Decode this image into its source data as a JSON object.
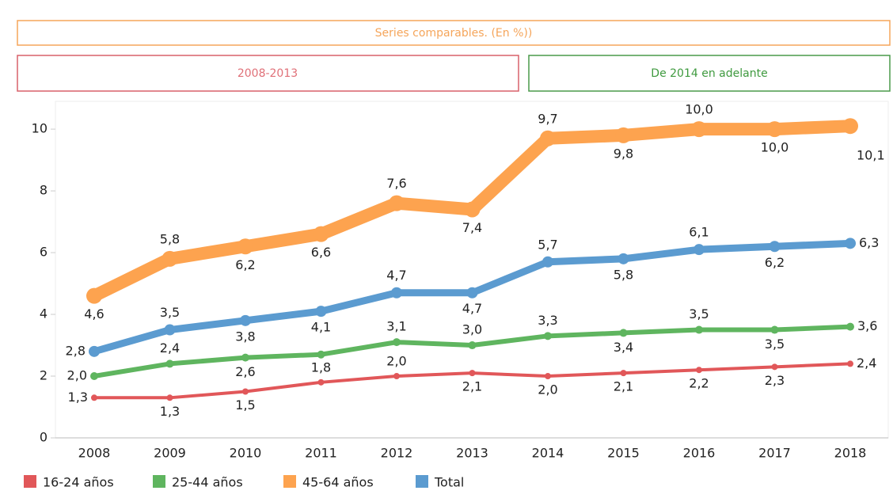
{
  "headers": {
    "title": "Series comparables. (En %))",
    "left": "2008-2013",
    "right": "De 2014 en adelante"
  },
  "chart_data": {
    "type": "line",
    "categories": [
      "2008",
      "2009",
      "2010",
      "2011",
      "2012",
      "2013",
      "2014",
      "2015",
      "2016",
      "2017",
      "2018"
    ],
    "ylim": [
      0,
      10.9
    ],
    "yticks": [
      0,
      2,
      4,
      6,
      8,
      10
    ],
    "series": [
      {
        "name": "16-24 años",
        "color": "#e15759",
        "values": [
          1.3,
          1.3,
          1.5,
          1.8,
          2.0,
          2.1,
          2.0,
          2.1,
          2.2,
          2.3,
          2.4
        ],
        "value_labels": [
          "1,3",
          "1,3",
          "1,5",
          "1,8",
          "2,0",
          "2,1",
          "2,0",
          "2,1",
          "2,2",
          "2,3",
          "2,4"
        ]
      },
      {
        "name": "25-44 años",
        "color": "#5fb55f",
        "values": [
          2.0,
          2.4,
          2.6,
          2.7,
          3.1,
          3.0,
          3.3,
          3.4,
          3.5,
          3.5,
          3.6
        ],
        "value_labels": [
          "2,0",
          "2,4",
          "2,6",
          null,
          "3,1",
          "3,0",
          "3,3",
          "3,4",
          "3,5",
          "3,5",
          "3,6"
        ]
      },
      {
        "name": "45-64 años",
        "color": "#fda34f",
        "values": [
          4.6,
          5.8,
          6.2,
          6.6,
          7.6,
          7.4,
          9.7,
          9.8,
          10.0,
          10.0,
          10.1
        ],
        "value_labels": [
          "4,6",
          "5,8",
          "6,2",
          "6,6",
          "7,6",
          "7,4",
          "9,7",
          "9,8",
          "10,0",
          "10,0",
          "10,1"
        ]
      },
      {
        "name": "Total",
        "color": "#5b9bd0",
        "values": [
          2.8,
          3.5,
          3.8,
          4.1,
          4.7,
          4.7,
          5.7,
          5.8,
          6.1,
          6.2,
          6.3
        ],
        "value_labels": [
          "2,8",
          "3,5",
          "3,8",
          "4,1",
          "4,7",
          "4,7",
          "5,7",
          "5,8",
          "6,1",
          "6,2",
          "6,3"
        ]
      }
    ]
  }
}
